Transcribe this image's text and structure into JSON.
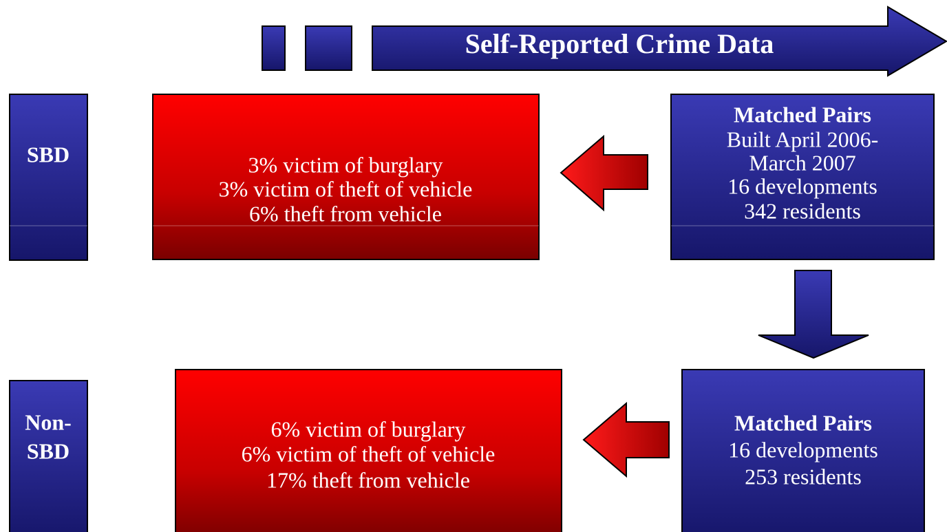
{
  "header": {
    "title": "Self-Reported Crime Data"
  },
  "groups": [
    {
      "label": [
        "SBD"
      ],
      "results": [
        "3% victim of burglary",
        "3% victim of theft of vehicle",
        "6% theft from vehicle"
      ],
      "sample": {
        "title": "Matched Pairs",
        "lines": [
          "Built April 2006-",
          "March 2007",
          "16 developments",
          "342 residents"
        ]
      }
    },
    {
      "label": [
        "Non-",
        "SBD"
      ],
      "results": [
        "6% victim of burglary",
        "6% victim of theft of vehicle",
        "17% theft from vehicle"
      ],
      "sample": {
        "title": "Matched Pairs",
        "lines": [
          "16 developments",
          "253 residents"
        ]
      }
    }
  ]
}
